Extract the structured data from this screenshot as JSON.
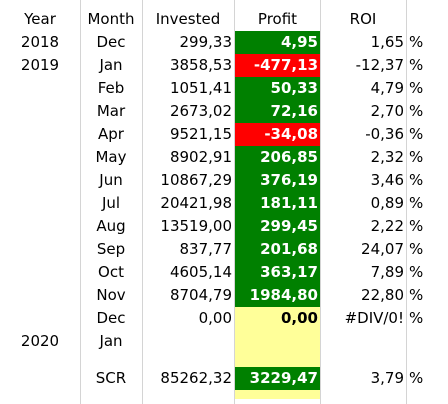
{
  "headers": {
    "year": "Year",
    "month": "Month",
    "invested": "Invested",
    "profit": "Profit",
    "roi": "ROI"
  },
  "rows": [
    {
      "year": "2018",
      "month": "Dec",
      "invested": "299,33",
      "profit": "4,95",
      "roi": "1,65",
      "pct": "%",
      "status": "pos"
    },
    {
      "year": "2019",
      "month": "Jan",
      "invested": "3858,53",
      "profit": "-477,13",
      "roi": "-12,37",
      "pct": "%",
      "status": "neg"
    },
    {
      "year": "",
      "month": "Feb",
      "invested": "1051,41",
      "profit": "50,33",
      "roi": "4,79",
      "pct": "%",
      "status": "pos"
    },
    {
      "year": "",
      "month": "Mar",
      "invested": "2673,02",
      "profit": "72,16",
      "roi": "2,70",
      "pct": "%",
      "status": "pos"
    },
    {
      "year": "",
      "month": "Apr",
      "invested": "9521,15",
      "profit": "-34,08",
      "roi": "-0,36",
      "pct": "%",
      "status": "neg"
    },
    {
      "year": "",
      "month": "May",
      "invested": "8902,91",
      "profit": "206,85",
      "roi": "2,32",
      "pct": "%",
      "status": "pos"
    },
    {
      "year": "",
      "month": "Jun",
      "invested": "10867,29",
      "profit": "376,19",
      "roi": "3,46",
      "pct": "%",
      "status": "pos"
    },
    {
      "year": "",
      "month": "Jul",
      "invested": "20421,98",
      "profit": "181,11",
      "roi": "0,89",
      "pct": "%",
      "status": "pos"
    },
    {
      "year": "",
      "month": "Aug",
      "invested": "13519,00",
      "profit": "299,45",
      "roi": "2,22",
      "pct": "%",
      "status": "pos"
    },
    {
      "year": "",
      "month": "Sep",
      "invested": "837,77",
      "profit": "201,68",
      "roi": "24,07",
      "pct": "%",
      "status": "pos"
    },
    {
      "year": "",
      "month": "Oct",
      "invested": "4605,14",
      "profit": "363,17",
      "roi": "7,89",
      "pct": "%",
      "status": "pos"
    },
    {
      "year": "",
      "month": "Nov",
      "invested": "8704,79",
      "profit": "1984,80",
      "roi": "22,80",
      "pct": "%",
      "status": "pos"
    },
    {
      "year": "",
      "month": "Dec",
      "invested": "0,00",
      "profit": "0,00",
      "roi": "#DIV/0!",
      "pct": "%",
      "status": "zero"
    },
    {
      "year": "2020",
      "month": "Jan",
      "invested": "",
      "profit": "",
      "roi": "",
      "pct": "",
      "status": "empty"
    },
    {
      "year": "",
      "month": "",
      "invested": "",
      "profit": "",
      "roi": "",
      "pct": "",
      "status": "empty"
    },
    {
      "year": "",
      "month": "",
      "invested": "",
      "profit": "",
      "roi": "",
      "pct": "",
      "status": "empty"
    }
  ],
  "summary": {
    "label": "SCR",
    "invested": "85262,32",
    "profit": "3229,47",
    "roi": "3,79",
    "pct": "%",
    "status": "pos"
  },
  "colors": {
    "positive": "#008000",
    "negative": "#ff0000",
    "zero": "#ffff99",
    "gridline": "#d4d4d4"
  }
}
